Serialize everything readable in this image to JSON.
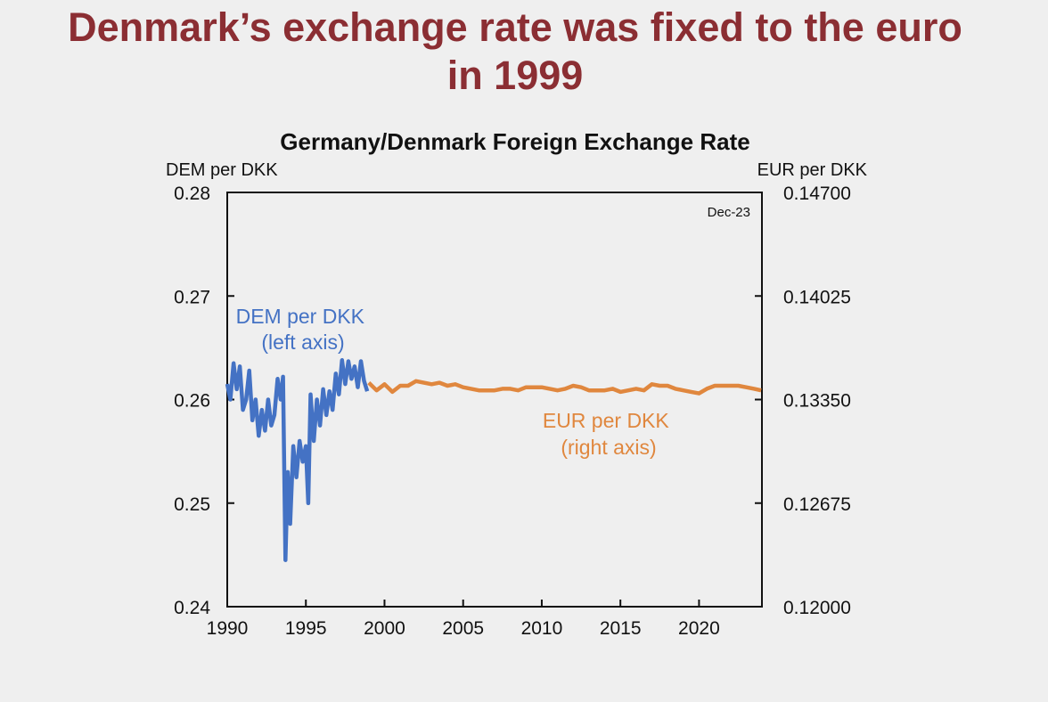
{
  "slide": {
    "title_line1": "Denmark’s exchange rate was fixed to the euro",
    "title_line2": "in 1999"
  },
  "chart_data": {
    "type": "line",
    "title": "Germany/Denmark Foreign Exchange Rate",
    "left_axis_label": "DEM per DKK",
    "right_axis_label": "EUR per DKK",
    "date_note": "Dec-23",
    "xlim": [
      1990,
      2024
    ],
    "x_ticks": [
      "1990",
      "1995",
      "2000",
      "2005",
      "2010",
      "2015",
      "2020"
    ],
    "ylim_left": [
      0.24,
      0.28
    ],
    "y_ticks_left": [
      "0.24",
      "0.25",
      "0.26",
      "0.27",
      "0.28"
    ],
    "ylim_right": [
      0.12,
      0.147
    ],
    "y_ticks_right": [
      "0.12000",
      "0.12675",
      "0.13350",
      "0.14025",
      "0.14700"
    ],
    "grid": false,
    "colors": {
      "dem": "#4472c4",
      "eur": "#e0873e",
      "title": "#8b2e33"
    },
    "series": [
      {
        "name": "DEM per DKK",
        "label_line1": "DEM per DKK",
        "label_line2": "(left axis)",
        "axis": "left",
        "x": [
          1990.0,
          1990.2,
          1990.4,
          1990.6,
          1990.8,
          1991.0,
          1991.2,
          1991.4,
          1991.6,
          1991.8,
          1992.0,
          1992.2,
          1992.4,
          1992.6,
          1992.8,
          1993.0,
          1993.2,
          1993.4,
          1993.55,
          1993.7,
          1993.85,
          1994.0,
          1994.2,
          1994.4,
          1994.6,
          1994.8,
          1995.0,
          1995.15,
          1995.3,
          1995.5,
          1995.7,
          1995.9,
          1996.1,
          1996.3,
          1996.5,
          1996.7,
          1996.9,
          1997.1,
          1997.3,
          1997.5,
          1997.7,
          1997.9,
          1998.1,
          1998.3,
          1998.5,
          1998.7,
          1998.9
        ],
        "y": [
          0.2615,
          0.26,
          0.2635,
          0.261,
          0.2632,
          0.259,
          0.26,
          0.2628,
          0.258,
          0.26,
          0.2565,
          0.259,
          0.257,
          0.26,
          0.2575,
          0.2585,
          0.262,
          0.26,
          0.2622,
          0.2445,
          0.253,
          0.248,
          0.2555,
          0.2525,
          0.256,
          0.254,
          0.2555,
          0.25,
          0.2605,
          0.256,
          0.26,
          0.2575,
          0.261,
          0.2585,
          0.2608,
          0.259,
          0.2625,
          0.2605,
          0.2638,
          0.2615,
          0.2637,
          0.262,
          0.2632,
          0.2612,
          0.2637,
          0.2618,
          0.2608
        ]
      },
      {
        "name": "EUR per DKK",
        "label_line1": "EUR per DKK",
        "label_line2": "(right axis)",
        "axis": "right",
        "x": [
          1999.0,
          1999.5,
          2000.0,
          2000.5,
          2001.0,
          2001.5,
          2002.0,
          2002.5,
          2003.0,
          2003.5,
          2004.0,
          2004.5,
          2005.0,
          2005.5,
          2006.0,
          2006.5,
          2007.0,
          2007.5,
          2008.0,
          2008.5,
          2009.0,
          2009.5,
          2010.0,
          2010.5,
          2011.0,
          2011.5,
          2012.0,
          2012.5,
          2013.0,
          2013.5,
          2014.0,
          2014.5,
          2015.0,
          2015.5,
          2016.0,
          2016.5,
          2017.0,
          2017.5,
          2018.0,
          2018.5,
          2019.0,
          2019.5,
          2020.0,
          2020.5,
          2021.0,
          2021.5,
          2022.0,
          2022.5,
          2023.0,
          2023.5,
          2023.95
        ],
        "y": [
          0.1346,
          0.1341,
          0.1345,
          0.134,
          0.1344,
          0.1344,
          0.1347,
          0.1346,
          0.1345,
          0.1346,
          0.1344,
          0.1345,
          0.1343,
          0.1342,
          0.1341,
          0.1341,
          0.1341,
          0.1342,
          0.1342,
          0.1341,
          0.1343,
          0.1343,
          0.1343,
          0.1342,
          0.1341,
          0.1342,
          0.1344,
          0.1343,
          0.1341,
          0.1341,
          0.1341,
          0.1342,
          0.134,
          0.1341,
          0.1342,
          0.1341,
          0.1345,
          0.1344,
          0.1344,
          0.1342,
          0.1341,
          0.134,
          0.1339,
          0.1342,
          0.1344,
          0.1344,
          0.1344,
          0.1344,
          0.1343,
          0.1342,
          0.1341
        ]
      }
    ]
  }
}
